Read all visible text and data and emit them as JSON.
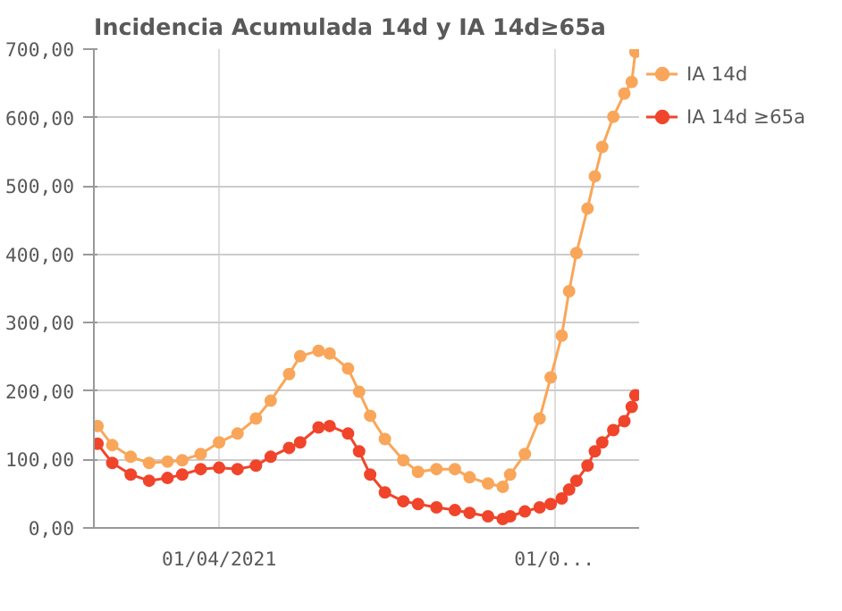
{
  "chart_data": {
    "type": "line",
    "title": "Incidencia Acumulada 14d y IA 14d≥65a",
    "x": [
      "2021-02-27",
      "2021-03-03",
      "2021-03-08",
      "2021-03-13",
      "2021-03-18",
      "2021-03-22",
      "2021-03-27",
      "2021-04-01",
      "2021-04-06",
      "2021-04-11",
      "2021-04-15",
      "2021-04-20",
      "2021-04-23",
      "2021-04-28",
      "2021-05-01",
      "2021-05-06",
      "2021-05-09",
      "2021-05-12",
      "2021-05-16",
      "2021-05-21",
      "2021-05-25",
      "2021-05-30",
      "2021-06-04",
      "2021-06-08",
      "2021-06-13",
      "2021-06-17",
      "2021-06-19",
      "2021-06-23",
      "2021-06-27",
      "2021-06-30",
      "2021-07-03",
      "2021-07-05",
      "2021-07-07",
      "2021-07-10",
      "2021-07-12",
      "2021-07-14",
      "2021-07-17",
      "2021-07-20",
      "2021-07-22",
      "2021-07-23"
    ],
    "series": [
      {
        "name": "IA 14d",
        "color": "#f9a65a",
        "values": [
          149,
          121,
          104,
          95,
          97,
          99,
          108,
          125,
          138,
          160,
          186,
          225,
          251,
          259,
          255,
          233,
          199,
          164,
          130,
          99,
          82,
          86,
          86,
          74,
          65,
          60,
          78,
          108,
          160,
          220,
          281,
          346,
          402,
          467,
          514,
          557,
          601,
          635,
          652,
          696
        ]
      },
      {
        "name": "IA 14d ≥65a",
        "color": "#f0452b",
        "values": [
          123,
          95,
          78,
          69,
          73,
          78,
          86,
          88,
          86,
          91,
          104,
          117,
          125,
          147,
          149,
          138,
          112,
          78,
          52,
          39,
          35,
          30,
          26,
          22,
          17,
          13,
          17,
          24,
          30,
          35,
          43,
          56,
          69,
          91,
          112,
          125,
          143,
          156,
          177,
          194
        ]
      }
    ],
    "xlim": [
      "2021-02-26",
      "2021-07-24"
    ],
    "xticks": [
      {
        "value": "2021-04-01",
        "label": "01/04/2021"
      },
      {
        "value": "2021-07-01",
        "label": "01/0..."
      }
    ],
    "ylim": [
      0,
      700
    ],
    "yticks": [
      {
        "value": 0,
        "label": "0,00"
      },
      {
        "value": 100,
        "label": "100,00"
      },
      {
        "value": 200,
        "label": "200,00"
      },
      {
        "value": 300,
        "label": "300,00"
      },
      {
        "value": 400,
        "label": "400,00"
      },
      {
        "value": 500,
        "label": "500,00"
      },
      {
        "value": 600,
        "label": "600,00"
      },
      {
        "value": 700,
        "label": "700,00"
      }
    ],
    "grid": true,
    "legend": "top right",
    "marker": "circle",
    "line_style": "solid"
  }
}
